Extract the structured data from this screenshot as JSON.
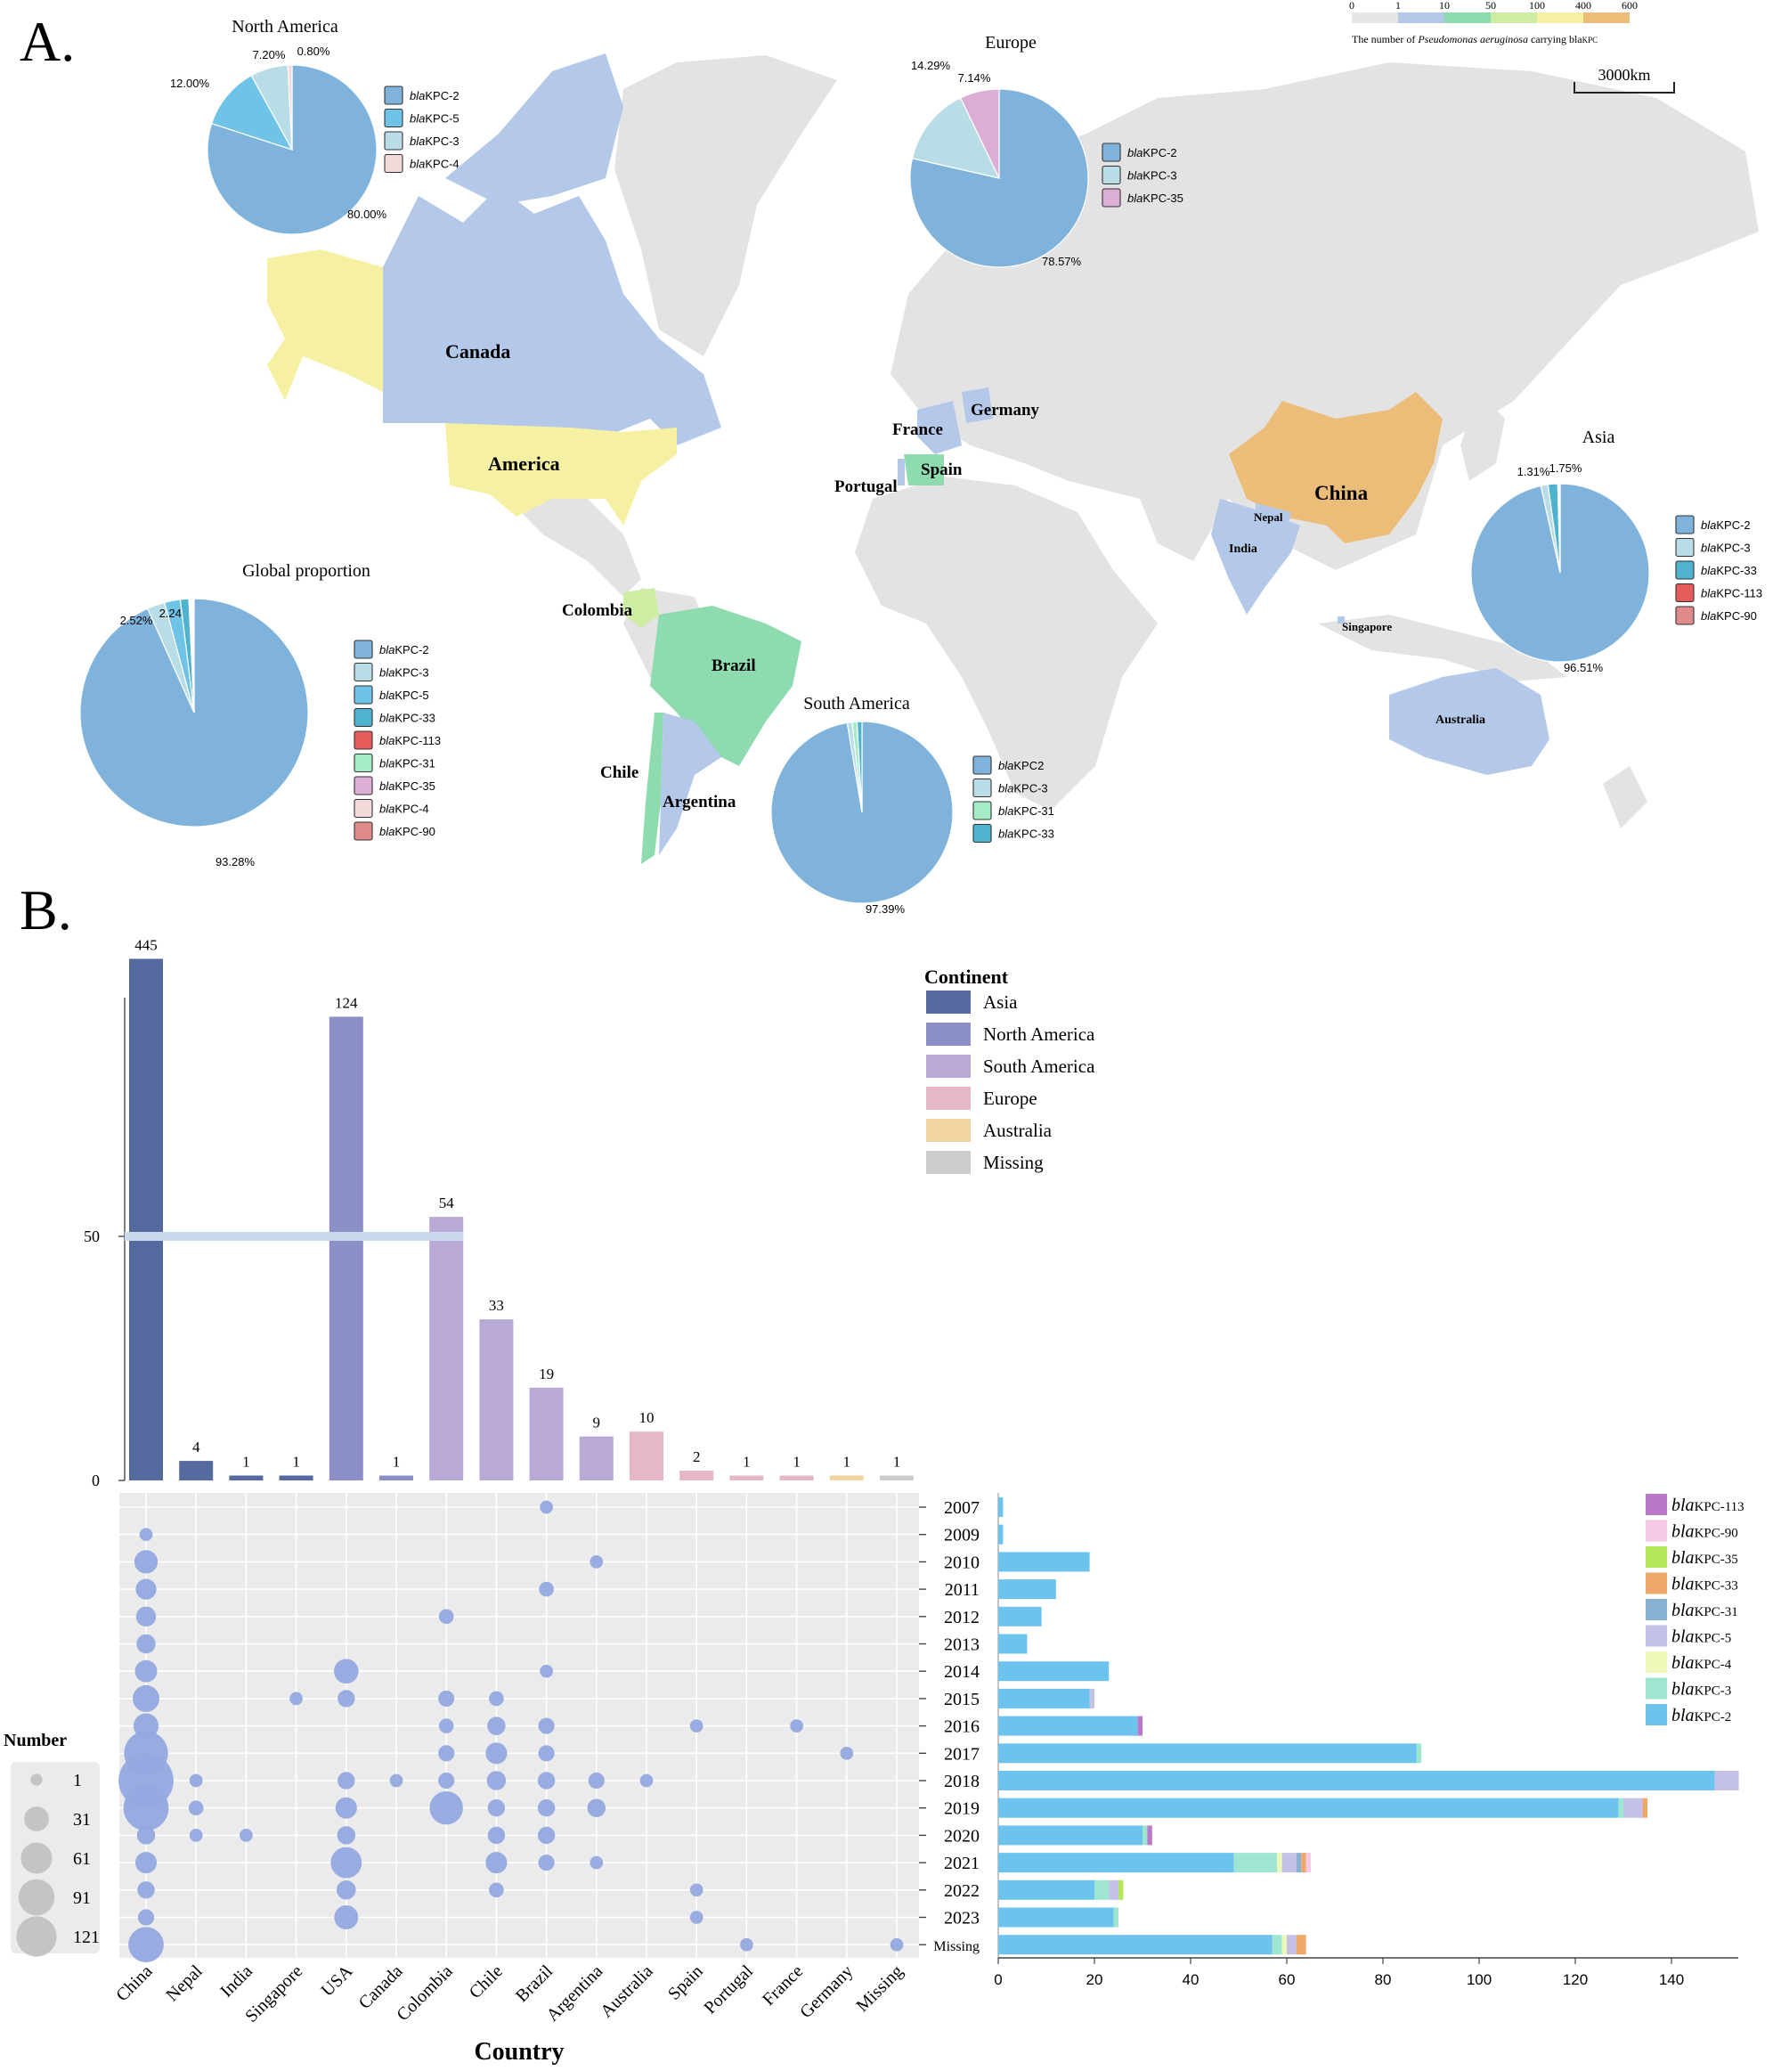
{
  "panels": {
    "a_label": "A.",
    "b_label": "B."
  },
  "map": {
    "scale_bar_label": "3000km",
    "legend_ticks": [
      "0",
      "1",
      "10",
      "50",
      "100",
      "400",
      "600"
    ],
    "legend_colors": [
      "#e6e6e6",
      "#b4c8ea",
      "#8edbb0",
      "#cdeea2",
      "#f6f1a2",
      "#ecbd78"
    ],
    "legend_caption_prefix": "The number of ",
    "legend_caption_species": "Pseudomonas aeruginosa",
    "legend_caption_suffix": " carrying bla",
    "legend_caption_sub": "KPC",
    "country_labels": [
      {
        "key": "canada",
        "text": "Canada"
      },
      {
        "key": "america",
        "text": "America"
      },
      {
        "key": "france",
        "text": "France"
      },
      {
        "key": "germany",
        "text": "Germany"
      },
      {
        "key": "spain",
        "text": "Spain"
      },
      {
        "key": "portugal",
        "text": "Portugal"
      },
      {
        "key": "china",
        "text": "China"
      },
      {
        "key": "nepal",
        "text": "Nepal"
      },
      {
        "key": "india",
        "text": "India"
      },
      {
        "key": "singapore",
        "text": "Singapore"
      },
      {
        "key": "australia",
        "text": "Australia"
      },
      {
        "key": "colombia",
        "text": "Colombia"
      },
      {
        "key": "brazil",
        "text": "Brazil"
      },
      {
        "key": "chile",
        "text": "Chile"
      },
      {
        "key": "argentina",
        "text": "Argentina"
      }
    ]
  },
  "chart_data": [
    {
      "type": "pie",
      "title": "North America",
      "slices": [
        {
          "label_prefix": "bla",
          "label": "KPC-2",
          "value": 80.0,
          "text": "80.00%",
          "color": "#7fb3dc"
        },
        {
          "label_prefix": "bla",
          "label": "KPC-5",
          "value": 12.0,
          "text": "12.00%",
          "color": "#6ec3e6"
        },
        {
          "label_prefix": "bla",
          "label": "KPC-3",
          "value": 7.2,
          "text": "7.20%",
          "color": "#b9dde6"
        },
        {
          "label_prefix": "bla",
          "label": "KPC-4",
          "value": 0.8,
          "text": "0.80%",
          "color": "#f3d9d9"
        }
      ]
    },
    {
      "type": "pie",
      "title": "Europe",
      "slices": [
        {
          "label_prefix": "bla",
          "label": "KPC-2",
          "value": 78.57,
          "text": "78.57%",
          "color": "#7fb3dc"
        },
        {
          "label_prefix": "bla",
          "label": "KPC-3",
          "value": 14.29,
          "text": "14.29%",
          "color": "#b9dde6"
        },
        {
          "label_prefix": "bla",
          "label": "KPC-35",
          "value": 7.14,
          "text": "7.14%",
          "color": "#dcaed6"
        }
      ]
    },
    {
      "type": "pie",
      "title": "Asia",
      "slices": [
        {
          "label_prefix": "bla",
          "label": "KPC-2",
          "value": 96.51,
          "text": "96.51%",
          "color": "#7fb3dc"
        },
        {
          "label_prefix": "bla",
          "label": "KPC-3",
          "value": 1.31,
          "text": "1.31%",
          "color": "#b9dde6"
        },
        {
          "label_prefix": "bla",
          "label": "KPC-33",
          "value": 1.75,
          "text": "1.75%",
          "color": "#4fb3cf"
        },
        {
          "label_prefix": "bla",
          "label": "KPC-113",
          "value": 0.22,
          "text": "",
          "color": "#e55a5a"
        },
        {
          "label_prefix": "bla",
          "label": "KPC-90",
          "value": 0.21,
          "text": "",
          "color": "#e08a8a"
        }
      ]
    },
    {
      "type": "pie",
      "title": "Global proportion",
      "slices": [
        {
          "label_prefix": "bla",
          "label": "KPC-2",
          "value": 93.28,
          "text": "93.28%",
          "color": "#7fb3dc"
        },
        {
          "label_prefix": "bla",
          "label": "KPC-3",
          "value": 2.52,
          "text": "2.52%",
          "color": "#b9dde6"
        },
        {
          "label_prefix": "bla",
          "label": "KPC-5",
          "value": 2.24,
          "text": "2.24%",
          "color": "#6ec3e6"
        },
        {
          "label_prefix": "bla",
          "label": "KPC-33",
          "value": 1.2,
          "text": "",
          "color": "#4fb3cf"
        },
        {
          "label_prefix": "bla",
          "label": "KPC-113",
          "value": 0.15,
          "text": "",
          "color": "#e55a5a"
        },
        {
          "label_prefix": "bla",
          "label": "KPC-31",
          "value": 0.15,
          "text": "",
          "color": "#a5ecc6"
        },
        {
          "label_prefix": "bla",
          "label": "KPC-35",
          "value": 0.15,
          "text": "",
          "color": "#dcaed6"
        },
        {
          "label_prefix": "bla",
          "label": "KPC-4",
          "value": 0.15,
          "text": "",
          "color": "#f3d9d9"
        },
        {
          "label_prefix": "bla",
          "label": "KPC-90",
          "value": 0.14,
          "text": "",
          "color": "#e08a8a"
        }
      ]
    },
    {
      "type": "pie",
      "title": "South America",
      "slices": [
        {
          "label_prefix": "bla",
          "label": "KPC2",
          "value": 97.39,
          "text": "97.39%",
          "color": "#7fb3dc"
        },
        {
          "label_prefix": "bla",
          "label": "KPC-3",
          "value": 0.87,
          "text": "",
          "color": "#b9dde6"
        },
        {
          "label_prefix": "bla",
          "label": "KPC-31",
          "value": 0.87,
          "text": "",
          "color": "#a5ecc6"
        },
        {
          "label_prefix": "bla",
          "label": "KPC-33",
          "value": 0.87,
          "text": "",
          "color": "#4fb3cf"
        }
      ]
    },
    {
      "type": "bar",
      "categories": [
        "China",
        "Nepal",
        "India",
        "Singapore",
        "USA",
        "Canada",
        "Colombia",
        "Chile",
        "Brazil",
        "Argentina",
        "Australia",
        "Spain",
        "Portugal",
        "France",
        "Germany",
        "Missing"
      ],
      "values": [
        445,
        4,
        1,
        1,
        124,
        1,
        54,
        33,
        19,
        9,
        10,
        2,
        1,
        1,
        1,
        1
      ],
      "continents": [
        "Asia",
        "Asia",
        "Asia",
        "Asia",
        "North America",
        "North America",
        "South America",
        "South America",
        "South America",
        "South America",
        "Europe",
        "Europe",
        "Europe",
        "Europe",
        "Australia",
        "Missing"
      ],
      "y_axis_break": true,
      "yticks": [
        "0",
        "50"
      ],
      "legend_title": "Continent",
      "legend": [
        {
          "label": "Asia",
          "color": "#556b9f"
        },
        {
          "label": "North America",
          "color": "#8b8fc6"
        },
        {
          "label": "South America",
          "color": "#b8a9d6"
        },
        {
          "label": "Europe",
          "color": "#e6b7c8"
        },
        {
          "label": "Australia",
          "color": "#f2d3a2"
        },
        {
          "label": "Missing",
          "color": "#cccccc"
        }
      ]
    },
    {
      "type": "scatter",
      "xlabel": "Country",
      "x_categories": [
        "China",
        "Nepal",
        "India",
        "Singapore",
        "USA",
        "Canada",
        "Colombia",
        "Chile",
        "Brazil",
        "Argentina",
        "Australia",
        "Spain",
        "Portugal",
        "France",
        "Germany",
        "Missing"
      ],
      "y_categories": [
        "2007",
        "2009",
        "2010",
        "2011",
        "2012",
        "2013",
        "2014",
        "2015",
        "2016",
        "2017",
        "2018",
        "2019",
        "2020",
        "2021",
        "2022",
        "2023",
        "Missing"
      ],
      "size_legend_title": "Number",
      "size_legend": [
        1,
        31,
        61,
        91,
        121
      ],
      "points": [
        [
          "Brazil",
          "2007",
          1
        ],
        [
          "China",
          "2009",
          1
        ],
        [
          "China",
          "2010",
          12
        ],
        [
          "Argentina",
          "2010",
          1
        ],
        [
          "China",
          "2011",
          8
        ],
        [
          "Brazil",
          "2011",
          2
        ],
        [
          "China",
          "2012",
          7
        ],
        [
          "Colombia",
          "2012",
          2
        ],
        [
          "China",
          "2013",
          6
        ],
        [
          "China",
          "2014",
          10
        ],
        [
          "USA",
          "2014",
          14
        ],
        [
          "Brazil",
          "2014",
          1
        ],
        [
          "China",
          "2015",
          18
        ],
        [
          "Singapore",
          "2015",
          1
        ],
        [
          "USA",
          "2015",
          4
        ],
        [
          "Colombia",
          "2015",
          3
        ],
        [
          "Chile",
          "2015",
          2
        ],
        [
          "China",
          "2016",
          15
        ],
        [
          "Colombia",
          "2016",
          2
        ],
        [
          "Chile",
          "2016",
          5
        ],
        [
          "Brazil",
          "2016",
          3
        ],
        [
          "Spain",
          "2016",
          1
        ],
        [
          "France",
          "2016",
          1
        ],
        [
          "China",
          "2017",
          70
        ],
        [
          "Colombia",
          "2017",
          3
        ],
        [
          "Chile",
          "2017",
          9
        ],
        [
          "Brazil",
          "2017",
          3
        ],
        [
          "Germany",
          "2017",
          1
        ],
        [
          "China",
          "2018",
          121
        ],
        [
          "Nepal",
          "2018",
          1
        ],
        [
          "USA",
          "2018",
          4
        ],
        [
          "Canada",
          "2018",
          1
        ],
        [
          "Colombia",
          "2018",
          3
        ],
        [
          "Chile",
          "2018",
          6
        ],
        [
          "Brazil",
          "2018",
          4
        ],
        [
          "Argentina",
          "2018",
          3
        ],
        [
          "Australia",
          "2018",
          1
        ],
        [
          "China",
          "2019",
          75
        ],
        [
          "Nepal",
          "2019",
          2
        ],
        [
          "USA",
          "2019",
          9
        ],
        [
          "Colombia",
          "2019",
          34
        ],
        [
          "Chile",
          "2019",
          4
        ],
        [
          "Brazil",
          "2019",
          4
        ],
        [
          "Argentina",
          "2019",
          5
        ],
        [
          "China",
          "2020",
          5
        ],
        [
          "Nepal",
          "2020",
          1
        ],
        [
          "India",
          "2020",
          1
        ],
        [
          "USA",
          "2020",
          5
        ],
        [
          "Chile",
          "2020",
          4
        ],
        [
          "Brazil",
          "2020",
          4
        ],
        [
          "China",
          "2021",
          9
        ],
        [
          "USA",
          "2021",
          28
        ],
        [
          "Chile",
          "2021",
          9
        ],
        [
          "Brazil",
          "2021",
          3
        ],
        [
          "Argentina",
          "2021",
          1
        ],
        [
          "China",
          "2022",
          4
        ],
        [
          "USA",
          "2022",
          6
        ],
        [
          "Chile",
          "2022",
          2
        ],
        [
          "Spain",
          "2022",
          1
        ],
        [
          "China",
          "2023",
          3
        ],
        [
          "USA",
          "2023",
          13
        ],
        [
          "Spain",
          "2023",
          1
        ],
        [
          "China",
          "Missing",
          40
        ],
        [
          "Portugal",
          "Missing",
          1
        ],
        [
          "Missing",
          "Missing",
          1
        ]
      ]
    },
    {
      "type": "bar",
      "orientation": "horizontal",
      "stacked": true,
      "categories": [
        "2007",
        "2009",
        "2010",
        "2011",
        "2012",
        "2013",
        "2014",
        "2015",
        "2016",
        "2017",
        "2018",
        "2019",
        "2020",
        "2021",
        "2022",
        "2023",
        "Missing"
      ],
      "xticks": [
        0,
        20,
        40,
        60,
        80,
        100,
        120,
        140
      ],
      "xlim": [
        0,
        153
      ],
      "series": [
        {
          "name_prefix": "bla",
          "name": "KPC-2",
          "color": "#6cc4ee",
          "values": [
            1,
            1,
            19,
            12,
            9,
            6,
            23,
            19,
            29,
            87,
            149,
            129,
            30,
            49,
            20,
            24,
            57
          ]
        },
        {
          "name_prefix": "bla",
          "name": "KPC-3",
          "color": "#9ee6d2",
          "values": [
            0,
            0,
            0,
            0,
            0,
            0,
            0,
            0,
            0,
            1,
            0,
            1,
            1,
            9,
            3,
            1,
            2
          ]
        },
        {
          "name_prefix": "bla",
          "name": "KPC-4",
          "color": "#eef8b8",
          "values": [
            0,
            0,
            0,
            0,
            0,
            0,
            0,
            0,
            0,
            0,
            0,
            0,
            0,
            1,
            0,
            0,
            1
          ]
        },
        {
          "name_prefix": "bla",
          "name": "KPC-5",
          "color": "#c3c2e6",
          "values": [
            0,
            0,
            0,
            0,
            0,
            0,
            0,
            1,
            0,
            0,
            5,
            4,
            0,
            3,
            2,
            0,
            2
          ]
        },
        {
          "name_prefix": "bla",
          "name": "KPC-31",
          "color": "#87b0d3",
          "values": [
            0,
            0,
            0,
            0,
            0,
            0,
            0,
            0,
            0,
            0,
            0,
            0,
            0,
            1,
            0,
            0,
            0
          ]
        },
        {
          "name_prefix": "bla",
          "name": "KPC-33",
          "color": "#f0a86a",
          "values": [
            0,
            0,
            0,
            0,
            0,
            0,
            0,
            0,
            0,
            0,
            0,
            1,
            0,
            1,
            0,
            0,
            2
          ]
        },
        {
          "name_prefix": "bla",
          "name": "KPC-35",
          "color": "#b2e85a",
          "values": [
            0,
            0,
            0,
            0,
            0,
            0,
            0,
            0,
            0,
            0,
            0,
            0,
            0,
            0,
            1,
            0,
            0
          ]
        },
        {
          "name_prefix": "bla",
          "name": "KPC-90",
          "color": "#f6c9e6",
          "values": [
            0,
            0,
            0,
            0,
            0,
            0,
            0,
            0,
            0,
            0,
            0,
            0,
            0,
            1,
            0,
            0,
            0
          ]
        },
        {
          "name_prefix": "bla",
          "name": "KPC-113",
          "color": "#bc78c8",
          "values": [
            0,
            0,
            0,
            0,
            0,
            0,
            0,
            0,
            1,
            0,
            0,
            0,
            1,
            0,
            0,
            0,
            0
          ]
        }
      ]
    }
  ]
}
